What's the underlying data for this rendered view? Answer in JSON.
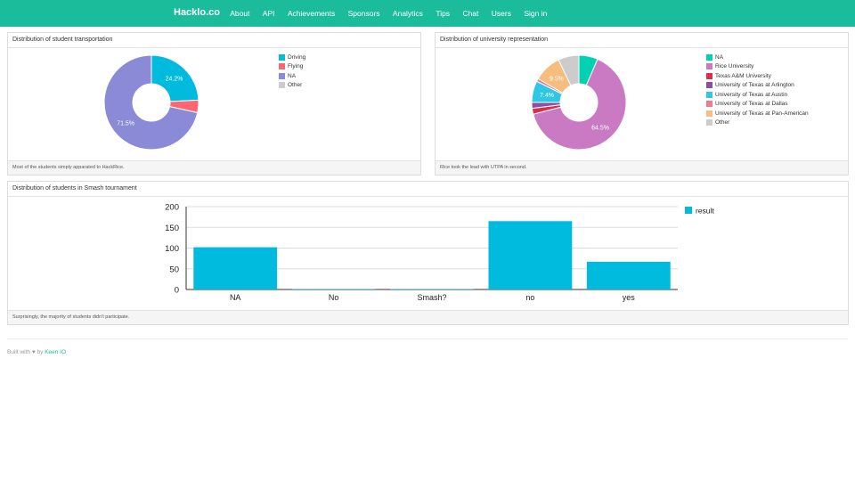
{
  "nav": {
    "brand": "Hacklo.co",
    "items": [
      "About",
      "API",
      "Achievements",
      "Sponsors",
      "Analytics",
      "Tips",
      "Chat",
      "Users",
      "Sign in"
    ]
  },
  "colors": {
    "navbar": "#1abc9c",
    "bar": "#00bbde"
  },
  "transport": {
    "title": "Distribution of student transportation",
    "footer": "Most of the students simply apparated to HackRice.",
    "chart_data": {
      "type": "pie",
      "labels": [
        "Driving",
        "Flying",
        "NA",
        "Other"
      ],
      "values": [
        24.2,
        4.3,
        71.5,
        0.0
      ],
      "colors": [
        "#00bbde",
        "#fe6672",
        "#8a8ad6",
        "#cccccc"
      ],
      "slice_labels": [
        "24.2%",
        "",
        "71.5%",
        ""
      ],
      "legend": "right"
    }
  },
  "university": {
    "title": "Distribution of university representation",
    "footer": "Rice took the lead with UTPA in second.",
    "chart_data": {
      "type": "pie",
      "labels": [
        "NA",
        "Rice University",
        "Texas A&M University",
        "University of Texas at Arlington",
        "University of Texas at Austin",
        "University of Texas at Dallas",
        "University of Texas at Pan-American",
        "Other"
      ],
      "values": [
        6.5,
        64.5,
        2.0,
        2.0,
        7.4,
        1.0,
        9.5,
        7.1
      ],
      "colors": [
        "#00d1b2",
        "#c97ac3",
        "#d6304f",
        "#8a4f9e",
        "#2ec7e6",
        "#ef7c8e",
        "#f5be7e",
        "#cccccc"
      ],
      "slice_labels": [
        "",
        "64.5%",
        "",
        "",
        "7.4%",
        "",
        "9.5%",
        ""
      ],
      "legend": "right"
    }
  },
  "smash": {
    "title": "Distribution of students in Smash tournament",
    "footer": "Surprisingly, the majority of students didn't participate.",
    "chart_data": {
      "type": "bar",
      "categories": [
        "NA",
        "No",
        "Smash?",
        "no",
        "yes"
      ],
      "series": [
        {
          "name": "result",
          "values": [
            102,
            1,
            1,
            165,
            67
          ]
        }
      ],
      "ylim": [
        0,
        200
      ],
      "yticks": [
        "0",
        "50",
        "100",
        "150",
        "200"
      ],
      "legend": "top-right"
    }
  },
  "footer": {
    "prefix": "Built with",
    "heart": "♥",
    "by": "by",
    "link": "Keen IO"
  }
}
